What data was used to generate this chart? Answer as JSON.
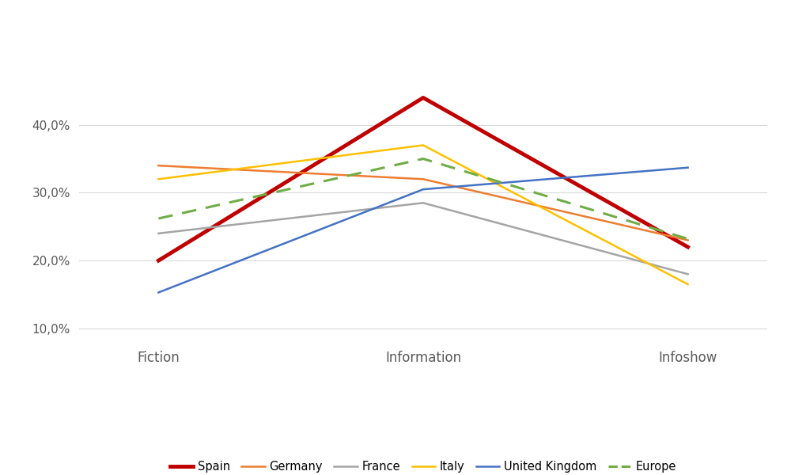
{
  "categories": [
    "Fiction",
    "Information",
    "Infoshow"
  ],
  "series": {
    "Spain": {
      "values": [
        0.2,
        0.44,
        0.22
      ],
      "color": "#C00000",
      "linewidth": 3.5,
      "linestyle": "solid"
    },
    "Germany": {
      "values": [
        0.34,
        0.32,
        0.23
      ],
      "color": "#ED7D31",
      "linewidth": 1.8,
      "linestyle": "solid"
    },
    "France": {
      "values": [
        0.24,
        0.285,
        0.18
      ],
      "color": "#A5A5A5",
      "linewidth": 1.8,
      "linestyle": "solid"
    },
    "Italy": {
      "values": [
        0.32,
        0.37,
        0.165
      ],
      "color": "#FFC000",
      "linewidth": 1.8,
      "linestyle": "solid"
    },
    "United Kingdom": {
      "values": [
        0.153,
        0.305,
        0.337
      ],
      "color": "#4472C4",
      "linewidth": 1.8,
      "linestyle": "solid"
    },
    "Europe": {
      "values": [
        0.262,
        0.35,
        0.232
      ],
      "color": "#70AD47",
      "linewidth": 2.2,
      "linestyle": "dashed"
    }
  },
  "ylim": [
    0.08,
    0.5
  ],
  "yticks": [
    0.1,
    0.2,
    0.3,
    0.4
  ],
  "ytick_labels": [
    "10,0%",
    "20,0%",
    "30,0%",
    "40,0%"
  ],
  "background_color": "#FFFFFF",
  "grid_color": "#D9D9D9",
  "legend_order": [
    "Spain",
    "Germany",
    "France",
    "Italy",
    "United Kingdom",
    "Europe"
  ]
}
